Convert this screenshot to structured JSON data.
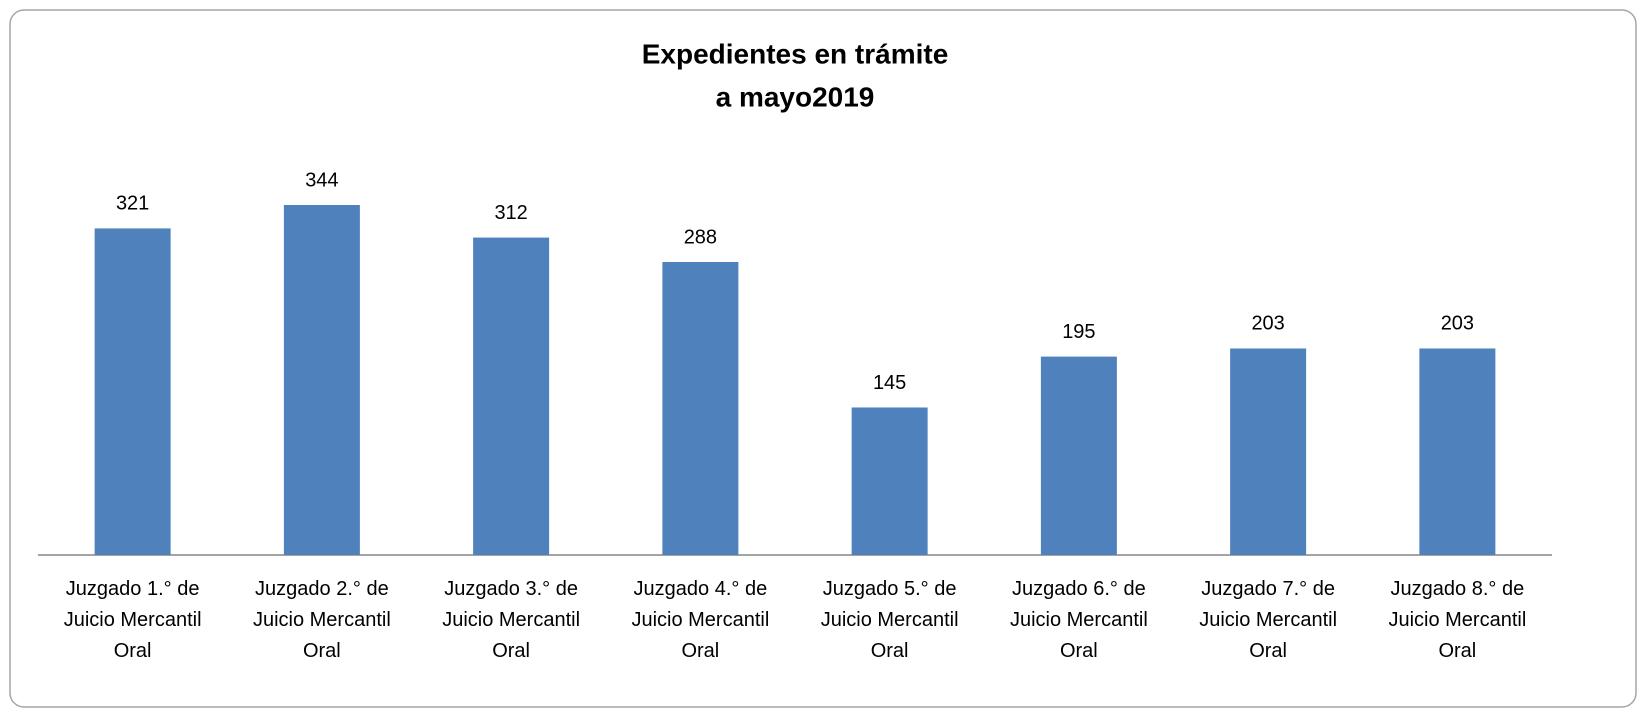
{
  "chart_data": {
    "type": "bar",
    "title": [
      "Expedientes en trámite",
      "a mayo2019"
    ],
    "categories": [
      "Juzgado 1.° de Juicio Mercantil Oral",
      "Juzgado 2.° de Juicio Mercantil Oral",
      "Juzgado 3.° de Juicio Mercantil Oral",
      "Juzgado 4.° de Juicio Mercantil Oral",
      "Juzgado 5.° de Juicio Mercantil Oral",
      "Juzgado 6.° de Juicio Mercantil Oral",
      "Juzgado 7.° de Juicio Mercantil Oral",
      "Juzgado 8.° de Juicio Mercantil Oral"
    ],
    "values": [
      321,
      344,
      312,
      288,
      145,
      195,
      203,
      203
    ],
    "color": "#4f81bd"
  }
}
